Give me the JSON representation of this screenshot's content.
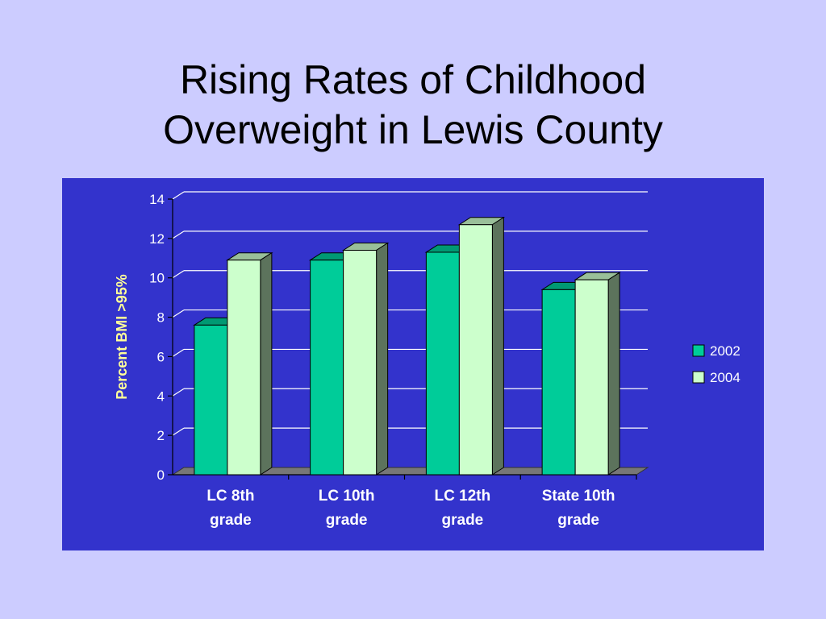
{
  "slide": {
    "title_line1": "Rising Rates of Childhood",
    "title_line2": "Overweight in Lewis County"
  },
  "colors": {
    "background": "#ccccff",
    "panel": "#3333cc",
    "series_2002": "#00cc99",
    "series_2004": "#ccffcc",
    "ylabel": "#ffff99",
    "text": "#ffffff"
  },
  "chart_data": {
    "type": "bar",
    "categories": [
      [
        "LC 8th",
        "grade"
      ],
      [
        "LC 10th",
        "grade"
      ],
      [
        "LC 12th",
        "grade"
      ],
      [
        "State 10th",
        "grade"
      ]
    ],
    "series": [
      {
        "name": "2002",
        "values": [
          7.6,
          10.9,
          11.3,
          9.4
        ]
      },
      {
        "name": "2004",
        "values": [
          10.9,
          11.4,
          12.7,
          9.9
        ]
      }
    ],
    "ylabel": "Percent BMI >95%",
    "xlabel": "",
    "ylim": [
      0,
      14
    ],
    "yticks": [
      0,
      2,
      4,
      6,
      8,
      10,
      12,
      14
    ],
    "grid": true,
    "legend_position": "right"
  }
}
